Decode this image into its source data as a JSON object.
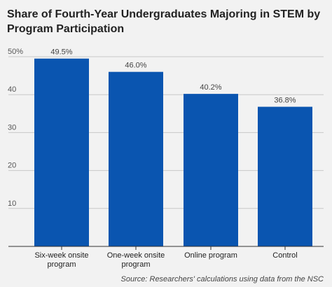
{
  "chart_data": {
    "type": "bar",
    "title": "Share of Fourth-Year Undergraduates Majoring in STEM by Program Participation",
    "categories": [
      [
        "Six-week onsite",
        "program"
      ],
      [
        "One-week onsite",
        "program"
      ],
      [
        "Online program"
      ],
      [
        "Control"
      ]
    ],
    "values": [
      49.5,
      46.0,
      40.2,
      36.8
    ],
    "value_labels": [
      "49.5%",
      "46.0%",
      "40.2%",
      "36.8%"
    ],
    "yticks": [
      10,
      20,
      30,
      40
    ],
    "ytick_top_label": "50%",
    "ylim": [
      0,
      50
    ],
    "xlabel": "",
    "ylabel": "",
    "grid": true,
    "bar_color": "#0a55b0",
    "source": "Source: Researchers' calculations using data from the NSC"
  }
}
